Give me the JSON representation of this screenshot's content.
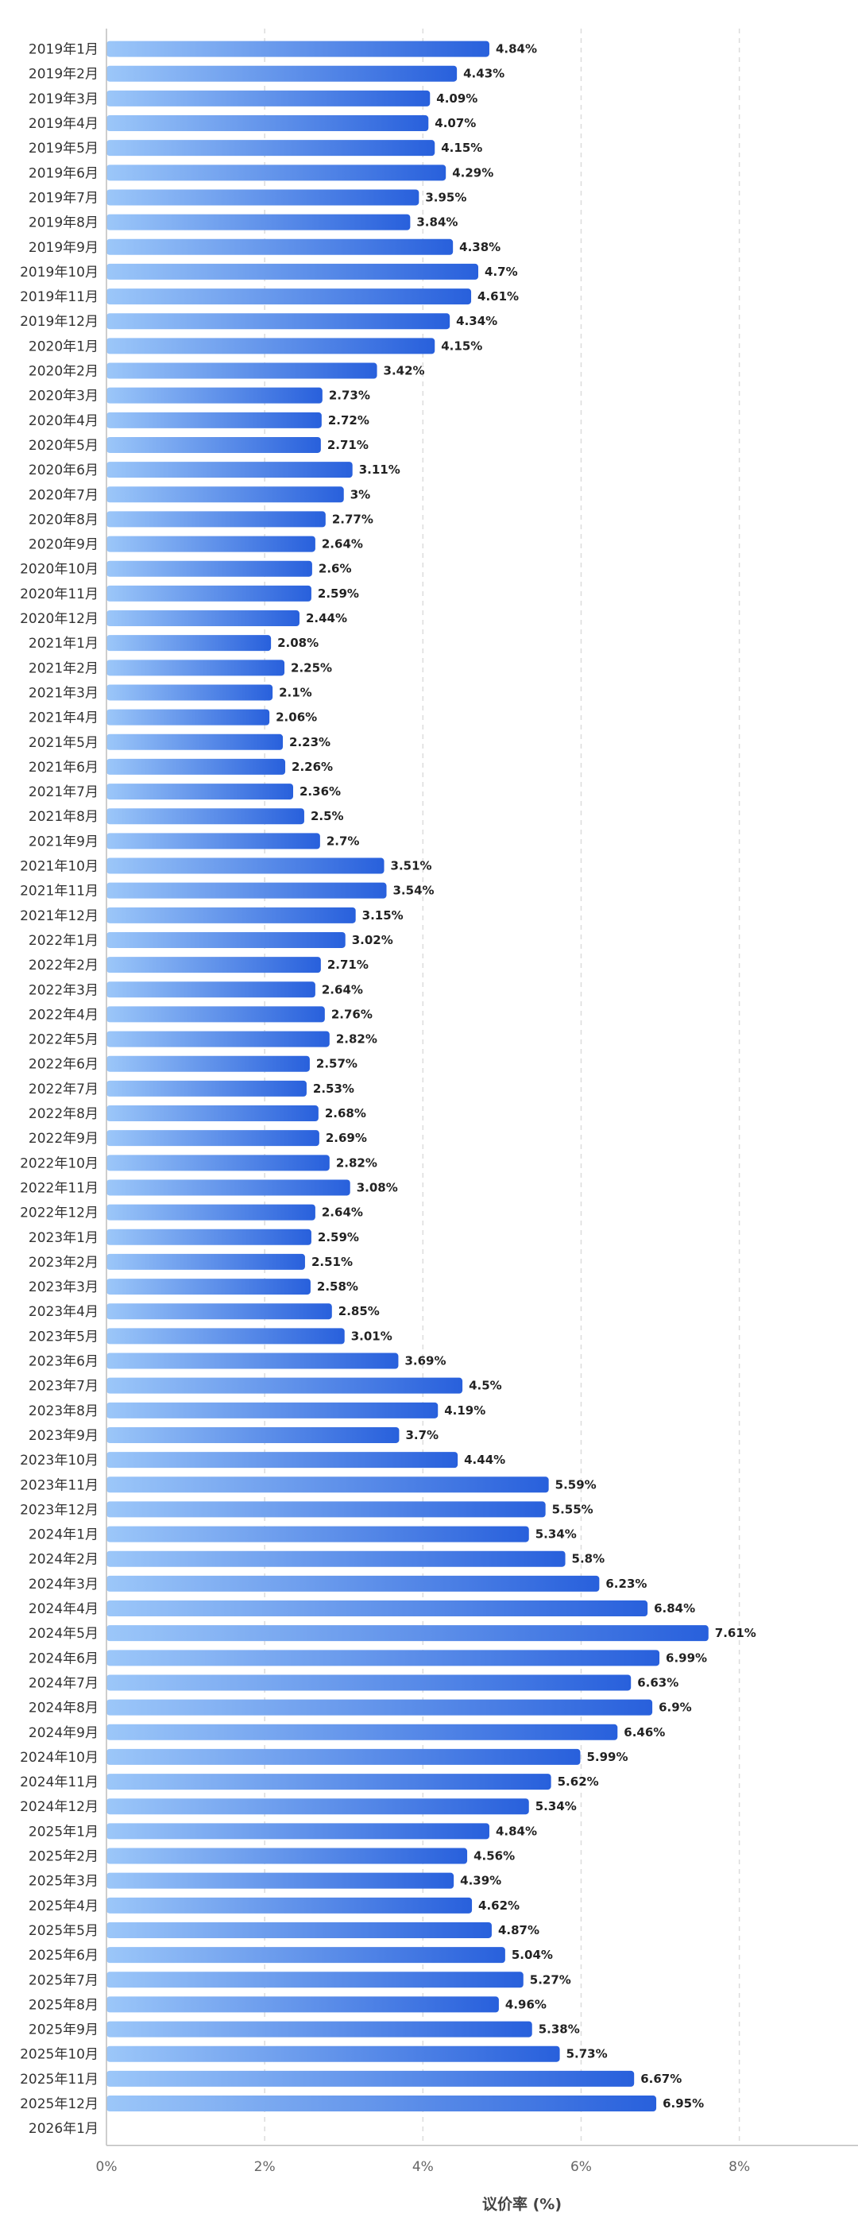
{
  "chart_data": {
    "type": "bar",
    "orientation": "horizontal",
    "xlabel": "议价率 (%)",
    "xlim": [
      0,
      9.5
    ],
    "xticks": [
      0,
      2,
      4,
      6,
      8
    ],
    "xtick_labels": [
      "0%",
      "2%",
      "4%",
      "6%",
      "8%"
    ],
    "grid": true,
    "bar_colors": {
      "start": "#9cc7f9",
      "end": "#2860dc"
    },
    "categories": [
      "2019年1月",
      "2019年2月",
      "2019年3月",
      "2019年4月",
      "2019年5月",
      "2019年6月",
      "2019年7月",
      "2019年8月",
      "2019年9月",
      "2019年10月",
      "2019年11月",
      "2019年12月",
      "2020年1月",
      "2020年2月",
      "2020年3月",
      "2020年4月",
      "2020年5月",
      "2020年6月",
      "2020年7月",
      "2020年8月",
      "2020年9月",
      "2020年10月",
      "2020年11月",
      "2020年12月",
      "2021年1月",
      "2021年2月",
      "2021年3月",
      "2021年4月",
      "2021年5月",
      "2021年6月",
      "2021年7月",
      "2021年8月",
      "2021年9月",
      "2021年10月",
      "2021年11月",
      "2021年12月",
      "2022年1月",
      "2022年2月",
      "2022年3月",
      "2022年4月",
      "2022年5月",
      "2022年6月",
      "2022年7月",
      "2022年8月",
      "2022年9月",
      "2022年10月",
      "2022年11月",
      "2022年12月",
      "2023年1月",
      "2023年2月",
      "2023年3月",
      "2023年4月",
      "2023年5月",
      "2023年6月",
      "2023年7月",
      "2023年8月",
      "2023年9月",
      "2023年10月",
      "2023年11月",
      "2023年12月",
      "2024年1月",
      "2024年2月",
      "2024年3月",
      "2024年4月",
      "2024年5月",
      "2024年6月",
      "2024年7月",
      "2024年8月",
      "2024年9月",
      "2024年10月",
      "2024年11月",
      "2024年12月",
      "2025年1月",
      "2025年2月",
      "2025年3月",
      "2025年4月",
      "2025年5月",
      "2025年6月",
      "2025年7月",
      "2025年8月",
      "2025年9月",
      "2025年10月",
      "2025年11月",
      "2025年12月",
      "2026年1月"
    ],
    "values": [
      4.84,
      4.43,
      4.09,
      4.07,
      4.15,
      4.29,
      3.95,
      3.84,
      4.38,
      4.7,
      4.61,
      4.34,
      4.15,
      3.42,
      2.73,
      2.72,
      2.71,
      3.11,
      3,
      2.77,
      2.64,
      2.6,
      2.59,
      2.44,
      2.08,
      2.25,
      2.1,
      2.06,
      2.23,
      2.26,
      2.36,
      2.5,
      2.7,
      3.51,
      3.54,
      3.15,
      3.02,
      2.71,
      2.64,
      2.76,
      2.82,
      2.57,
      2.53,
      2.68,
      2.69,
      2.82,
      3.08,
      2.64,
      2.59,
      2.51,
      2.58,
      2.85,
      3.01,
      3.69,
      4.5,
      4.19,
      3.7,
      4.44,
      5.59,
      5.55,
      5.34,
      5.8,
      6.23,
      6.84,
      7.61,
      6.99,
      6.63,
      6.9,
      6.46,
      5.99,
      5.62,
      5.34,
      4.84,
      4.56,
      4.39,
      4.62,
      4.87,
      5.04,
      5.27,
      4.96,
      5.38,
      5.73,
      6.67,
      6.95,
      null
    ],
    "value_labels": [
      "4.84%",
      "4.43%",
      "4.09%",
      "4.07%",
      "4.15%",
      "4.29%",
      "3.95%",
      "3.84%",
      "4.38%",
      "4.7%",
      "4.61%",
      "4.34%",
      "4.15%",
      "3.42%",
      "2.73%",
      "2.72%",
      "2.71%",
      "3.11%",
      "3%",
      "2.77%",
      "2.64%",
      "2.6%",
      "2.59%",
      "2.44%",
      "2.08%",
      "2.25%",
      "2.1%",
      "2.06%",
      "2.23%",
      "2.26%",
      "2.36%",
      "2.5%",
      "2.7%",
      "3.51%",
      "3.54%",
      "3.15%",
      "3.02%",
      "2.71%",
      "2.64%",
      "2.76%",
      "2.82%",
      "2.57%",
      "2.53%",
      "2.68%",
      "2.69%",
      "2.82%",
      "3.08%",
      "2.64%",
      "2.59%",
      "2.51%",
      "2.58%",
      "2.85%",
      "3.01%",
      "3.69%",
      "4.5%",
      "4.19%",
      "3.7%",
      "4.44%",
      "5.59%",
      "5.55%",
      "5.34%",
      "5.8%",
      "6.23%",
      "6.84%",
      "7.61%",
      "6.99%",
      "6.63%",
      "6.9%",
      "6.46%",
      "5.99%",
      "5.62%",
      "5.34%",
      "4.84%",
      "4.56%",
      "4.39%",
      "4.62%",
      "4.87%",
      "5.04%",
      "5.27%",
      "4.96%",
      "5.38%",
      "5.73%",
      "6.67%",
      "6.95%",
      ""
    ]
  }
}
